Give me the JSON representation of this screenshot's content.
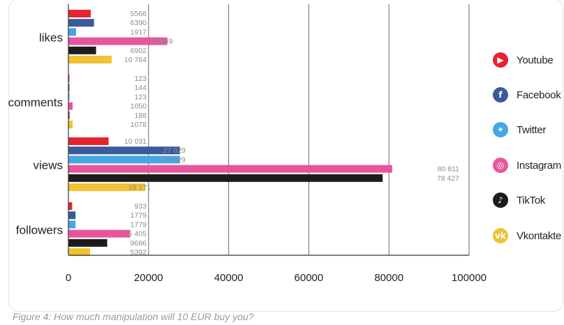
{
  "chart_data": {
    "type": "bar",
    "orientation": "horizontal",
    "categories": [
      "likes",
      "comments",
      "views",
      "followers"
    ],
    "series": [
      {
        "name": "Youtube",
        "color": "#e8222e",
        "icon": "youtube-icon",
        "values": [
          5566,
          123,
          10031,
          933
        ]
      },
      {
        "name": "Facebook",
        "color": "#3a5a9b",
        "icon": "facebook-icon",
        "values": [
          6390,
          144,
          27829,
          1779
        ]
      },
      {
        "name": "Twitter",
        "color": "#45a6e3",
        "icon": "twitter-icon",
        "values": [
          1917,
          123,
          27829,
          1779
        ]
      },
      {
        "name": "Instagram",
        "color": "#e8559e",
        "icon": "instagram-icon",
        "values": [
          24649,
          1050,
          80811,
          15405
        ]
      },
      {
        "name": "TikTok",
        "color": "#1c1c1c",
        "icon": "tiktok-icon",
        "values": [
          6902,
          188,
          78427,
          9686
        ]
      },
      {
        "name": "Vkontakte",
        "color": "#f1c232",
        "icon": "vkontakte-icon",
        "values": [
          10784,
          1078,
          19171,
          5392
        ]
      }
    ],
    "labels": [
      [
        "5566",
        "6390",
        "1917",
        "24 649",
        "6902",
        "10 784"
      ],
      [
        "123",
        "144",
        "123",
        "1050",
        "188",
        "1078"
      ],
      [
        "10 031",
        "27 829",
        "27 829",
        "80 811",
        "78 427",
        "19 171"
      ],
      [
        "933",
        "1779",
        "1779",
        "15 405",
        "9686",
        "5392"
      ]
    ],
    "xlim": [
      0,
      100000
    ],
    "xticks": [
      0,
      20000,
      40000,
      60000,
      80000,
      100000
    ],
    "xtick_labels": [
      "0",
      "20000",
      "40000",
      "60000",
      "80000",
      "100000"
    ],
    "legend_position": "right",
    "grid": true
  },
  "caption": "Figure 4: How much manipulation will 10 EUR buy you?"
}
